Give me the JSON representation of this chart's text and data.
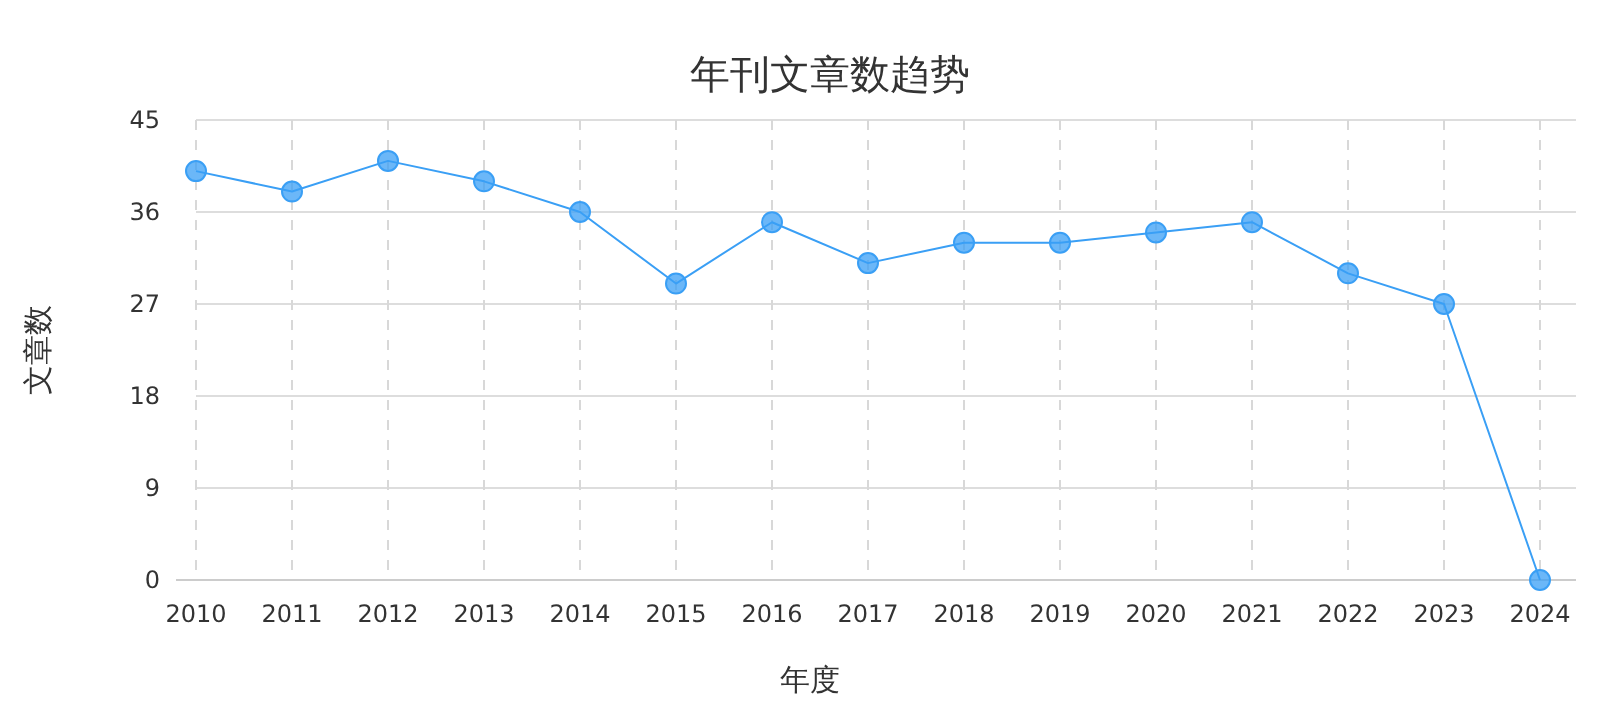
{
  "chart_data": {
    "type": "line",
    "title": "年刊文章数趋势",
    "xlabel": "年度",
    "ylabel": "文章数",
    "categories": [
      "2010",
      "2011",
      "2012",
      "2013",
      "2014",
      "2015",
      "2016",
      "2017",
      "2018",
      "2019",
      "2020",
      "2021",
      "2022",
      "2023",
      "2024"
    ],
    "series": [
      {
        "color": "#3a9ff5",
        "values": [
          40,
          38,
          41,
          39,
          36,
          29,
          35,
          31,
          33,
          33,
          34,
          35,
          30,
          27,
          0
        ]
      }
    ],
    "ylim": [
      0,
      45
    ],
    "yticks": [
      0,
      9,
      18,
      27,
      36,
      45
    ],
    "grid": true,
    "marker": "circle",
    "line_style": "solid"
  }
}
